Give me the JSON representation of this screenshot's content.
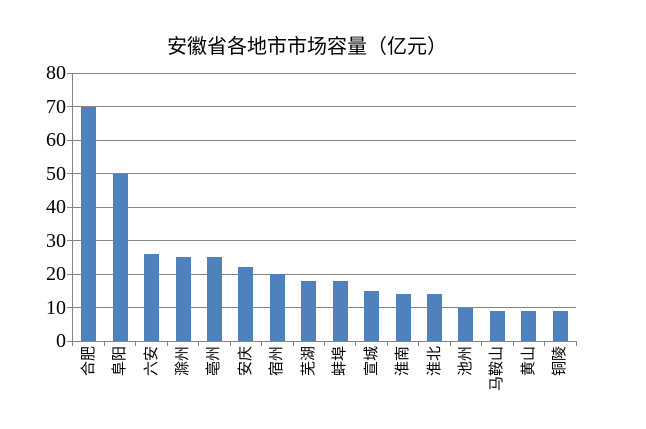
{
  "chart_data": {
    "type": "bar",
    "title": "安徽省各地市市场容量（亿元）",
    "categories": [
      "合肥",
      "阜阳",
      "六安",
      "滁州",
      "亳州",
      "安庆",
      "宿州",
      "芜湖",
      "蚌埠",
      "宣城",
      "淮南",
      "淮北",
      "池州",
      "马鞍山",
      "黄山",
      "铜陵"
    ],
    "values": [
      70,
      50,
      26,
      25,
      25,
      22,
      20,
      18,
      18,
      15,
      14,
      14,
      10,
      9,
      9,
      9
    ],
    "xlabel": "",
    "ylabel": "",
    "ylim": [
      0,
      80
    ],
    "yticks": [
      0,
      10,
      20,
      30,
      40,
      50,
      60,
      70,
      80
    ],
    "grid": "horizontal",
    "legend": "none",
    "x_label_rotation_degrees": -90,
    "bar_color": "#4F81BD",
    "line_color": "#848484",
    "text_color": "#000000",
    "background_color": "#FFFFFF"
  }
}
